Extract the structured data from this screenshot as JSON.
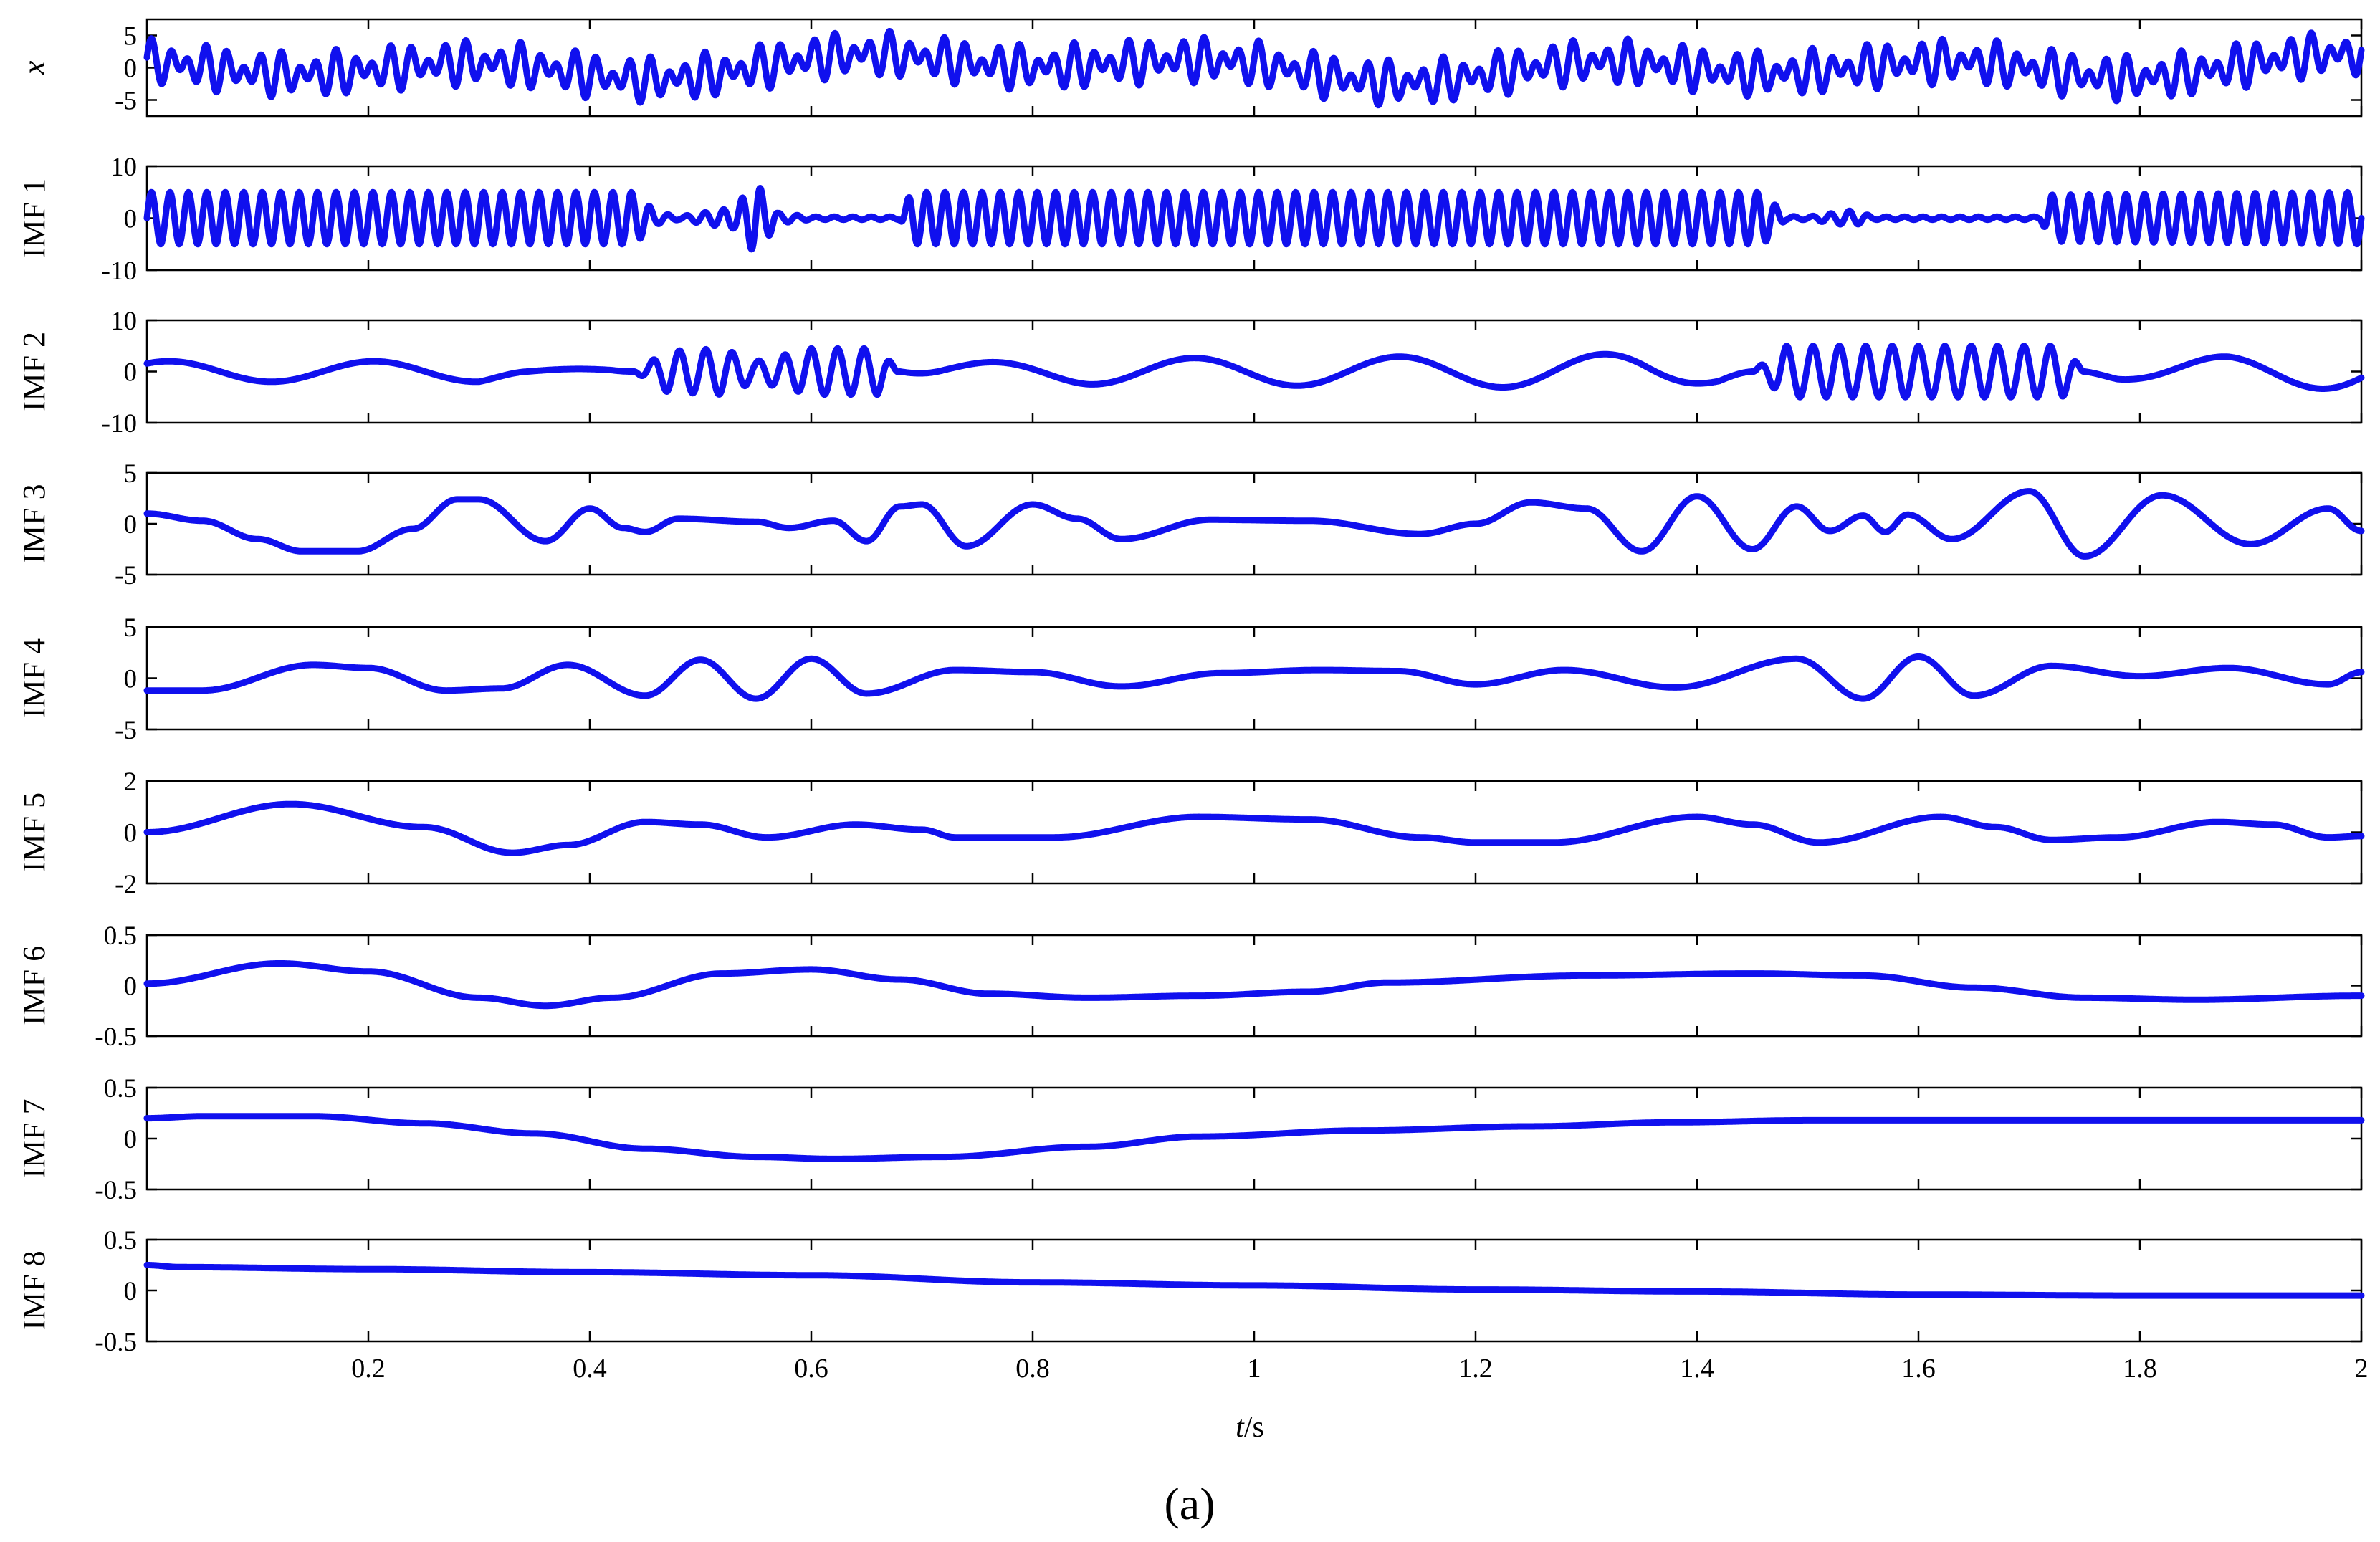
{
  "chart_data": {
    "type": "line",
    "caption": "(a)",
    "xlabel": {
      "italic": "t",
      "rest": "/s"
    },
    "xlim": [
      0,
      2
    ],
    "xticks": [
      0.2,
      0.4,
      0.6,
      0.8,
      1,
      1.2,
      1.4,
      1.6,
      1.8,
      2
    ],
    "xtick_labels": [
      "0.2",
      "0.4",
      "0.6",
      "0.8",
      "1",
      "1.2",
      "1.4",
      "1.6",
      "1.8",
      "2"
    ],
    "line_color": "#1010ee",
    "grid": false,
    "panels": [
      {
        "name": "x",
        "label": "x",
        "italic": true,
        "ylim": [
          -7.5,
          7.5
        ],
        "yticks": [
          5,
          0,
          -5
        ],
        "ytick_labels": [
          "5",
          "0",
          "-5"
        ],
        "gen": {
          "kind": "signal",
          "comps": [
            [
              2.2,
              60,
              0
            ],
            [
              1.5,
              42,
              0.5
            ],
            [
              1.2,
              3.0,
              2.2
            ],
            [
              0.8,
              1.5,
              0.6
            ],
            [
              0.6,
              0.8,
              4.3
            ]
          ]
        }
      },
      {
        "name": "imf-1",
        "label": "IMF 1",
        "ylim": [
          -10,
          10
        ],
        "yticks": [
          10,
          0,
          -10
        ],
        "ytick_labels": [
          "10",
          "0",
          "-10"
        ],
        "gen": {
          "kind": "osc",
          "freq": 60,
          "phase": 0,
          "env": [
            [
              0,
              5
            ],
            [
              0.44,
              5
            ],
            [
              0.46,
              1.2
            ],
            [
              0.48,
              0.3
            ],
            [
              0.53,
              2
            ],
            [
              0.55,
              7
            ],
            [
              0.57,
              1
            ],
            [
              0.6,
              0.3
            ],
            [
              0.68,
              0.3
            ],
            [
              0.69,
              5
            ],
            [
              1.46,
              5
            ],
            [
              1.48,
              0.4
            ],
            [
              1.5,
              0.3
            ],
            [
              1.54,
              1.5
            ],
            [
              1.56,
              0.3
            ],
            [
              1.71,
              0.3
            ],
            [
              1.72,
              4.5
            ],
            [
              2,
              5
            ]
          ]
        }
      },
      {
        "name": "imf-2",
        "label": "IMF 2",
        "ylim": [
          -10,
          10
        ],
        "yticks": [
          10,
          0,
          -10
        ],
        "ytick_labels": [
          "10",
          "0",
          "-10"
        ],
        "gen": {
          "kind": "mix",
          "fast": {
            "freq": 42,
            "phase": 0.3,
            "env": [
              [
                0,
                0
              ],
              [
                0.44,
                0
              ],
              [
                0.47,
                4
              ],
              [
                0.52,
                4.5
              ],
              [
                0.55,
                2
              ],
              [
                0.6,
                4.5
              ],
              [
                0.66,
                4.5
              ],
              [
                0.68,
                0
              ],
              [
                1.45,
                0
              ],
              [
                1.48,
                5
              ],
              [
                1.6,
                5
              ],
              [
                1.73,
                5
              ],
              [
                1.75,
                0
              ],
              [
                2,
                0
              ]
            ]
          },
          "slow": {
            "freq": 5.4,
            "phase": 0.9,
            "env": [
              [
                0,
                2
              ],
              [
                0.3,
                2
              ],
              [
                0.34,
                0.5
              ],
              [
                0.42,
                0.5
              ],
              [
                0.44,
                0
              ],
              [
                0.68,
                0
              ],
              [
                0.72,
                1.5
              ],
              [
                0.85,
                2.5
              ],
              [
                1.2,
                3
              ],
              [
                1.35,
                3.5
              ],
              [
                1.42,
                2
              ],
              [
                1.45,
                0
              ],
              [
                1.75,
                0
              ],
              [
                1.78,
                1.5
              ],
              [
                1.88,
                3
              ],
              [
                2,
                3.5
              ]
            ]
          }
        }
      },
      {
        "name": "imf-3",
        "label": "IMF 3",
        "ylim": [
          -5,
          5
        ],
        "yticks": [
          5,
          0,
          -5
        ],
        "ytick_labels": [
          "5",
          "0",
          "-5"
        ],
        "gen": {
          "kind": "path",
          "pts": [
            [
              0,
              1
            ],
            [
              0.05,
              0.3
            ],
            [
              0.1,
              -1.5
            ],
            [
              0.14,
              -2.7
            ],
            [
              0.19,
              -2.7
            ],
            [
              0.24,
              -0.5
            ],
            [
              0.28,
              2.4
            ],
            [
              0.3,
              2.4
            ],
            [
              0.36,
              -1.7
            ],
            [
              0.4,
              1.5
            ],
            [
              0.43,
              -0.4
            ],
            [
              0.45,
              -0.8
            ],
            [
              0.48,
              0.5
            ],
            [
              0.55,
              0.2
            ],
            [
              0.58,
              -0.4
            ],
            [
              0.62,
              0.3
            ],
            [
              0.65,
              -1.7
            ],
            [
              0.68,
              1.7
            ],
            [
              0.7,
              1.9
            ],
            [
              0.74,
              -2.2
            ],
            [
              0.8,
              1.9
            ],
            [
              0.84,
              0.5
            ],
            [
              0.88,
              -1.5
            ],
            [
              0.96,
              0.4
            ],
            [
              1.05,
              0.3
            ],
            [
              1.15,
              -1
            ],
            [
              1.2,
              0
            ],
            [
              1.25,
              2.1
            ],
            [
              1.3,
              1.5
            ],
            [
              1.35,
              -2.7
            ],
            [
              1.4,
              2.7
            ],
            [
              1.45,
              -2.5
            ],
            [
              1.49,
              1.7
            ],
            [
              1.52,
              -0.7
            ],
            [
              1.55,
              0.8
            ],
            [
              1.57,
              -0.8
            ],
            [
              1.59,
              0.9
            ],
            [
              1.63,
              -1.5
            ],
            [
              1.7,
              3.2
            ],
            [
              1.75,
              -3.2
            ],
            [
              1.82,
              2.8
            ],
            [
              1.9,
              -2
            ],
            [
              1.97,
              1.5
            ],
            [
              2,
              -0.7
            ]
          ]
        }
      },
      {
        "name": "imf-4",
        "label": "IMF 4",
        "ylim": [
          -5,
          5
        ],
        "yticks": [
          5,
          0,
          -5
        ],
        "ytick_labels": [
          "5",
          "0",
          "-5"
        ],
        "gen": {
          "kind": "path",
          "pts": [
            [
              0,
              -1.2
            ],
            [
              0.05,
              -1.2
            ],
            [
              0.15,
              1.3
            ],
            [
              0.2,
              1
            ],
            [
              0.27,
              -1.2
            ],
            [
              0.32,
              -1
            ],
            [
              0.38,
              1.3
            ],
            [
              0.45,
              -1.7
            ],
            [
              0.5,
              1.8
            ],
            [
              0.55,
              -2
            ],
            [
              0.6,
              1.9
            ],
            [
              0.65,
              -1.5
            ],
            [
              0.73,
              0.8
            ],
            [
              0.8,
              0.6
            ],
            [
              0.88,
              -0.8
            ],
            [
              0.97,
              0.5
            ],
            [
              1.06,
              0.8
            ],
            [
              1.13,
              0.7
            ],
            [
              1.2,
              -0.6
            ],
            [
              1.28,
              0.8
            ],
            [
              1.38,
              -0.9
            ],
            [
              1.49,
              1.9
            ],
            [
              1.55,
              -2
            ],
            [
              1.6,
              2.1
            ],
            [
              1.65,
              -1.7
            ],
            [
              1.72,
              1.2
            ],
            [
              1.8,
              0.2
            ],
            [
              1.88,
              1
            ],
            [
              1.97,
              -0.6
            ],
            [
              2,
              0.6
            ]
          ]
        }
      },
      {
        "name": "imf-5",
        "label": "IMF 5",
        "ylim": [
          -2,
          2
        ],
        "yticks": [
          2,
          0,
          -2
        ],
        "ytick_labels": [
          "2",
          "0",
          "-2"
        ],
        "gen": {
          "kind": "path",
          "pts": [
            [
              0,
              0
            ],
            [
              0.13,
              1.1
            ],
            [
              0.25,
              0.2
            ],
            [
              0.33,
              -0.8
            ],
            [
              0.38,
              -0.5
            ],
            [
              0.45,
              0.4
            ],
            [
              0.5,
              0.3
            ],
            [
              0.56,
              -0.2
            ],
            [
              0.64,
              0.3
            ],
            [
              0.7,
              0.1
            ],
            [
              0.73,
              -0.2
            ],
            [
              0.82,
              -0.2
            ],
            [
              0.95,
              0.6
            ],
            [
              1.05,
              0.5
            ],
            [
              1.15,
              -0.2
            ],
            [
              1.2,
              -0.4
            ],
            [
              1.27,
              -0.4
            ],
            [
              1.4,
              0.6
            ],
            [
              1.45,
              0.3
            ],
            [
              1.51,
              -0.4
            ],
            [
              1.62,
              0.6
            ],
            [
              1.67,
              0.2
            ],
            [
              1.72,
              -0.3
            ],
            [
              1.78,
              -0.2
            ],
            [
              1.87,
              0.4
            ],
            [
              1.92,
              0.3
            ],
            [
              1.97,
              -0.2
            ],
            [
              2,
              -0.15
            ]
          ]
        }
      },
      {
        "name": "imf-6",
        "label": "IMF 6",
        "ylim": [
          -0.5,
          0.5
        ],
        "yticks": [
          0.5,
          0,
          -0.5
        ],
        "ytick_labels": [
          "0.5",
          "0",
          "-0.5"
        ],
        "gen": {
          "kind": "path",
          "pts": [
            [
              0,
              0.02
            ],
            [
              0.12,
              0.22
            ],
            [
              0.2,
              0.14
            ],
            [
              0.3,
              -0.12
            ],
            [
              0.36,
              -0.2
            ],
            [
              0.42,
              -0.12
            ],
            [
              0.52,
              0.12
            ],
            [
              0.6,
              0.16
            ],
            [
              0.68,
              0.06
            ],
            [
              0.76,
              -0.08
            ],
            [
              0.85,
              -0.12
            ],
            [
              0.95,
              -0.1
            ],
            [
              1.05,
              -0.06
            ],
            [
              1.12,
              0.03
            ],
            [
              1.3,
              0.1
            ],
            [
              1.45,
              0.12
            ],
            [
              1.55,
              0.1
            ],
            [
              1.65,
              -0.02
            ],
            [
              1.75,
              -0.12
            ],
            [
              1.85,
              -0.14
            ],
            [
              2,
              -0.1
            ]
          ]
        }
      },
      {
        "name": "imf-7",
        "label": "IMF 7",
        "ylim": [
          -0.5,
          0.5
        ],
        "yticks": [
          0.5,
          0,
          -0.5
        ],
        "ytick_labels": [
          "0.5",
          "0",
          "-0.5"
        ],
        "gen": {
          "kind": "path",
          "pts": [
            [
              0,
              0.2
            ],
            [
              0.05,
              0.22
            ],
            [
              0.15,
              0.22
            ],
            [
              0.25,
              0.15
            ],
            [
              0.35,
              0.05
            ],
            [
              0.45,
              -0.1
            ],
            [
              0.55,
              -0.18
            ],
            [
              0.62,
              -0.2
            ],
            [
              0.72,
              -0.18
            ],
            [
              0.85,
              -0.08
            ],
            [
              0.95,
              0.02
            ],
            [
              1.1,
              0.08
            ],
            [
              1.25,
              0.12
            ],
            [
              1.38,
              0.16
            ],
            [
              1.5,
              0.18
            ],
            [
              1.7,
              0.18
            ],
            [
              2,
              0.18
            ]
          ]
        }
      },
      {
        "name": "imf-8",
        "label": "IMF 8",
        "ylim": [
          -0.5,
          0.5
        ],
        "yticks": [
          0.5,
          0,
          -0.5
        ],
        "ytick_labels": [
          "0.5",
          "0",
          "-0.5"
        ],
        "gen": {
          "kind": "path",
          "pts": [
            [
              0,
              0.25
            ],
            [
              0.03,
              0.23
            ],
            [
              0.2,
              0.21
            ],
            [
              0.4,
              0.18
            ],
            [
              0.6,
              0.15
            ],
            [
              0.8,
              0.08
            ],
            [
              1,
              0.05
            ],
            [
              1.2,
              0.01
            ],
            [
              1.4,
              -0.01
            ],
            [
              1.6,
              -0.04
            ],
            [
              1.8,
              -0.05
            ],
            [
              2,
              -0.05
            ]
          ]
        }
      }
    ]
  }
}
